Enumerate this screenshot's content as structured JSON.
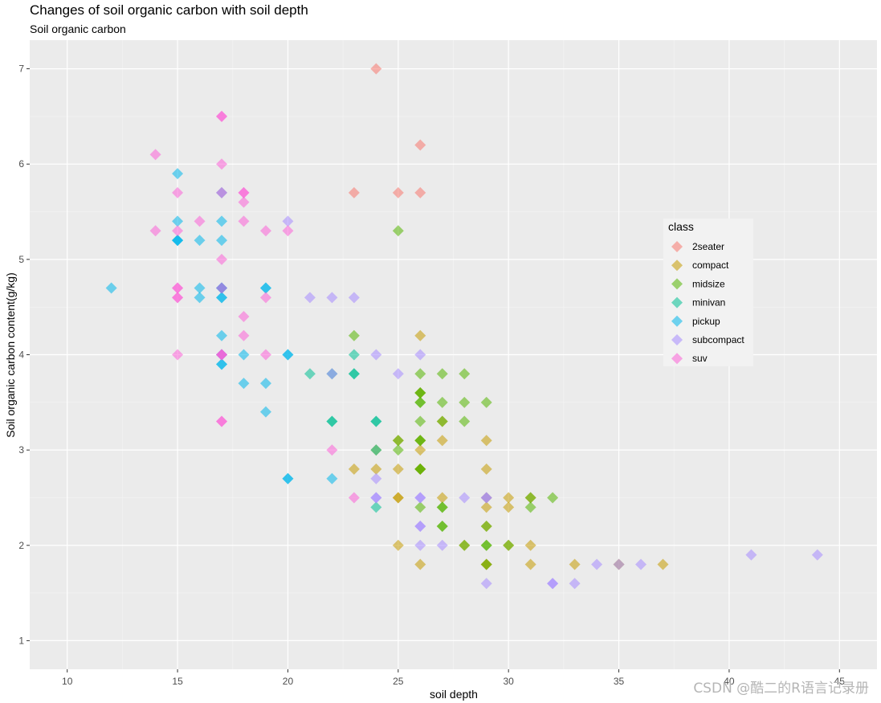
{
  "chart_data": {
    "type": "scatter",
    "title": "Changes of soil organic carbon with soil depth",
    "subtitle": "Soil organic carbon",
    "xlabel": "soil depth",
    "ylabel": "Soil organic carbon content(g/kg)",
    "xlim": [
      8.3,
      46.7
    ],
    "ylim": [
      0.7,
      7.3
    ],
    "x_ticks": [
      10,
      15,
      20,
      25,
      30,
      35,
      40,
      45
    ],
    "y_ticks": [
      1,
      2,
      3,
      4,
      5,
      6,
      7
    ],
    "grid": true,
    "marker": "diamond",
    "legend": {
      "title": "class",
      "placement": "right"
    },
    "series": [
      {
        "name": "2seater",
        "color": "#F8766D",
        "points": [
          [
            26,
            5.7
          ],
          [
            25,
            5.7
          ],
          [
            26,
            6.2
          ],
          [
            24,
            7.0
          ],
          [
            23,
            5.7
          ]
        ]
      },
      {
        "name": "compact",
        "color": "#C49A00",
        "points": [
          [
            29,
            1.8
          ],
          [
            29,
            1.8
          ],
          [
            31,
            2.0
          ],
          [
            30,
            2.0
          ],
          [
            26,
            2.8
          ],
          [
            26,
            2.8
          ],
          [
            27,
            3.1
          ],
          [
            26,
            1.8
          ],
          [
            25,
            2.0
          ],
          [
            28,
            2.0
          ],
          [
            29,
            2.8
          ],
          [
            29,
            3.1
          ],
          [
            26,
            4.2
          ],
          [
            25,
            2.5
          ],
          [
            27,
            2.5
          ],
          [
            25,
            2.8
          ],
          [
            24,
            2.8
          ],
          [
            26,
            3.1
          ],
          [
            29,
            2.4
          ],
          [
            30,
            2.4
          ],
          [
            31,
            2.5
          ],
          [
            26,
            3.0
          ],
          [
            27,
            3.3
          ],
          [
            29,
            2.2
          ],
          [
            31,
            1.8
          ],
          [
            33,
            1.8
          ],
          [
            35,
            1.8
          ],
          [
            37,
            1.8
          ],
          [
            25,
            2.5
          ],
          [
            30,
            2.5
          ],
          [
            29,
            2.5
          ],
          [
            24,
            3.0
          ],
          [
            23,
            2.8
          ],
          [
            26,
            3.6
          ],
          [
            25,
            3.1
          ]
        ]
      },
      {
        "name": "midsize",
        "color": "#53B400",
        "points": [
          [
            26,
            2.8
          ],
          [
            25,
            3.1
          ],
          [
            28,
            2.0
          ],
          [
            27,
            2.4
          ],
          [
            26,
            3.1
          ],
          [
            26,
            3.5
          ],
          [
            27,
            3.8
          ],
          [
            26,
            3.6
          ],
          [
            28,
            3.5
          ],
          [
            29,
            3.5
          ],
          [
            27,
            3.5
          ],
          [
            28,
            3.3
          ],
          [
            26,
            3.1
          ],
          [
            26,
            2.8
          ],
          [
            29,
            1.8
          ],
          [
            31,
            2.4
          ],
          [
            29,
            2.0
          ],
          [
            32,
            2.5
          ],
          [
            27,
            2.2
          ],
          [
            26,
            2.4
          ],
          [
            28,
            3.8
          ],
          [
            26,
            3.8
          ],
          [
            23,
            4.2
          ],
          [
            25,
            5.3
          ],
          [
            31,
            2.5
          ],
          [
            27,
            2.2
          ],
          [
            26,
            3.3
          ],
          [
            25,
            3.0
          ],
          [
            26,
            3.6
          ],
          [
            27,
            2.4
          ],
          [
            27,
            3.3
          ],
          [
            29,
            2.0
          ],
          [
            30,
            2.0
          ],
          [
            29,
            2.2
          ],
          [
            26,
            3.5
          ]
        ]
      },
      {
        "name": "minivan",
        "color": "#00C094",
        "points": [
          [
            24,
            2.4
          ],
          [
            24,
            3.0
          ],
          [
            22,
            3.3
          ],
          [
            22,
            3.3
          ],
          [
            24,
            3.3
          ],
          [
            24,
            3.3
          ],
          [
            23,
            3.8
          ],
          [
            22,
            3.8
          ],
          [
            23,
            4.0
          ],
          [
            21,
            3.8
          ],
          [
            23,
            3.8
          ]
        ]
      },
      {
        "name": "pickup",
        "color": "#00B6EB",
        "points": [
          [
            20,
            2.7
          ],
          [
            17,
            4.2
          ],
          [
            17,
            4.6
          ],
          [
            15,
            5.2
          ],
          [
            18,
            3.7
          ],
          [
            15,
            5.4
          ],
          [
            17,
            4.7
          ],
          [
            16,
            4.7
          ],
          [
            16,
            4.6
          ],
          [
            15,
            5.2
          ],
          [
            22,
            2.7
          ],
          [
            17,
            5.7
          ],
          [
            20,
            2.7
          ],
          [
            17,
            4.0
          ],
          [
            19,
            3.4
          ],
          [
            17,
            4.7
          ],
          [
            17,
            5.2
          ],
          [
            18,
            4.0
          ],
          [
            17,
            5.4
          ],
          [
            20,
            4.0
          ],
          [
            19,
            4.7
          ],
          [
            17,
            3.9
          ],
          [
            12,
            4.7
          ],
          [
            17,
            4.6
          ],
          [
            15,
            5.9
          ],
          [
            16,
            5.2
          ],
          [
            19,
            3.7
          ],
          [
            17,
            3.9
          ],
          [
            19,
            4.7
          ],
          [
            20,
            4.0
          ],
          [
            17,
            4.0
          ],
          [
            17,
            4.7
          ],
          [
            15,
            5.2
          ]
        ]
      },
      {
        "name": "subcompact",
        "color": "#A58AFF",
        "points": [
          [
            26,
            2.5
          ],
          [
            26,
            2.5
          ],
          [
            24,
            2.7
          ],
          [
            26,
            2.0
          ],
          [
            27,
            2.0
          ],
          [
            29,
            2.5
          ],
          [
            33,
            1.6
          ],
          [
            32,
            1.6
          ],
          [
            29,
            1.6
          ],
          [
            32,
            1.6
          ],
          [
            34,
            1.8
          ],
          [
            36,
            1.8
          ],
          [
            35,
            1.8
          ],
          [
            28,
            2.5
          ],
          [
            26,
            2.2
          ],
          [
            44,
            1.9
          ],
          [
            41,
            1.9
          ],
          [
            29,
            2.5
          ],
          [
            26,
            2.2
          ],
          [
            24,
            4.0
          ],
          [
            21,
            4.6
          ],
          [
            22,
            4.6
          ],
          [
            23,
            4.6
          ],
          [
            20,
            5.4
          ],
          [
            26,
            4.0
          ],
          [
            25,
            3.8
          ],
          [
            24,
            2.5
          ],
          [
            22,
            3.8
          ],
          [
            24,
            2.5
          ]
        ]
      },
      {
        "name": "suv",
        "color": "#FB61D7",
        "points": [
          [
            18,
            5.6
          ],
          [
            17,
            6.5
          ],
          [
            15,
            5.3
          ],
          [
            17,
            4.7
          ],
          [
            18,
            5.7
          ],
          [
            15,
            4.0
          ],
          [
            14,
            5.3
          ],
          [
            17,
            5.7
          ],
          [
            18,
            4.2
          ],
          [
            17,
            4.0
          ],
          [
            19,
            4.6
          ],
          [
            22,
            3.0
          ],
          [
            17,
            5.0
          ],
          [
            15,
            4.7
          ],
          [
            17,
            4.0
          ],
          [
            14,
            6.1
          ],
          [
            17,
            6.0
          ],
          [
            19,
            5.3
          ],
          [
            18,
            5.4
          ],
          [
            16,
            5.4
          ],
          [
            15,
            4.7
          ],
          [
            17,
            3.3
          ],
          [
            19,
            4.0
          ],
          [
            15,
            4.6
          ],
          [
            15,
            5.7
          ],
          [
            18,
            4.4
          ],
          [
            17,
            6.5
          ],
          [
            17,
            4.0
          ],
          [
            18,
            5.7
          ],
          [
            20,
            5.3
          ],
          [
            23,
            2.5
          ],
          [
            15,
            4.6
          ],
          [
            17,
            3.3
          ]
        ]
      }
    ]
  },
  "watermark": "CSDN @酷二的R语言记录册"
}
